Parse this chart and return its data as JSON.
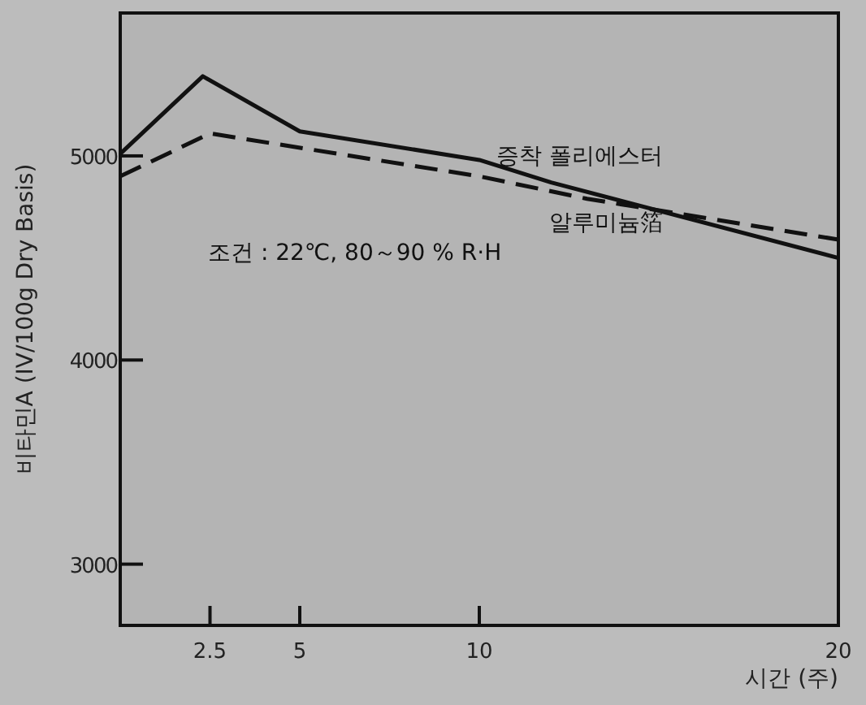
{
  "chart_data": {
    "type": "line",
    "xlabel": "시간 (주)",
    "ylabel": "비타민A (IV/100g Dry Basis)",
    "annotations": [
      "조건 : 22℃, 80～90 % R·H"
    ],
    "xlim": [
      0,
      20
    ],
    "ylim": [
      2700,
      5700
    ],
    "xticks": [
      2.5,
      5,
      10,
      20
    ],
    "yticks": [
      3000,
      4000,
      5000
    ],
    "series": [
      {
        "name": "증착 폴리에스터",
        "color": "#111111",
        "line_style": "solid",
        "x": [
          0,
          2.3,
          5,
          10,
          12,
          20
        ],
        "values": [
          5010,
          5390,
          5120,
          4980,
          4870,
          4500
        ]
      },
      {
        "name": "알루미늄箔",
        "color": "#111111",
        "line_style": "dashed",
        "x": [
          0,
          2.5,
          10,
          13,
          20
        ],
        "values": [
          4900,
          5110,
          4900,
          4790,
          4590
        ]
      }
    ]
  }
}
